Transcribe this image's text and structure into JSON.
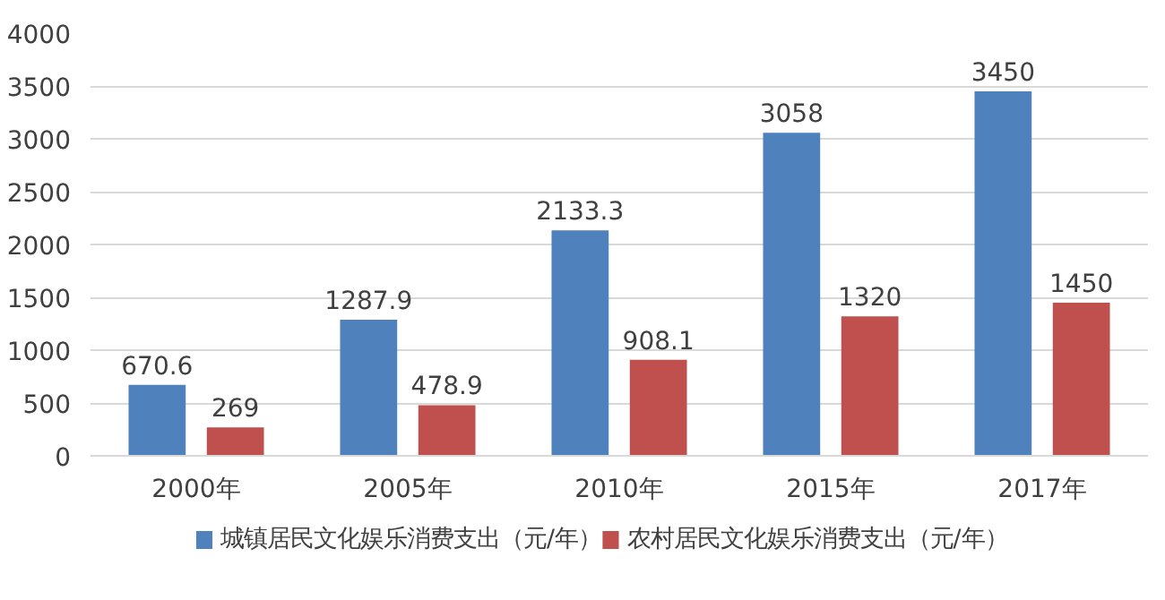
{
  "chart_data": {
    "type": "bar",
    "categories": [
      "2000年",
      "2005年",
      "2010年",
      "2015年",
      "2017年"
    ],
    "series": [
      {
        "name": "城镇居民文化娱乐消费支出（元/年）",
        "color": "#4f81bd",
        "values": [
          670.6,
          1287.9,
          2133.3,
          3058,
          3450
        ]
      },
      {
        "name": "农村居民文化娱乐消费支出（元/年）",
        "color": "#c0504d",
        "values": [
          269,
          478.9,
          908.1,
          1320,
          1450
        ]
      }
    ],
    "ylim": [
      0,
      4000
    ],
    "yticks": [
      0,
      500,
      1000,
      1500,
      2000,
      2500,
      3000,
      3500,
      4000
    ],
    "grid": "y",
    "legend": "bottom",
    "data_labels": true
  }
}
